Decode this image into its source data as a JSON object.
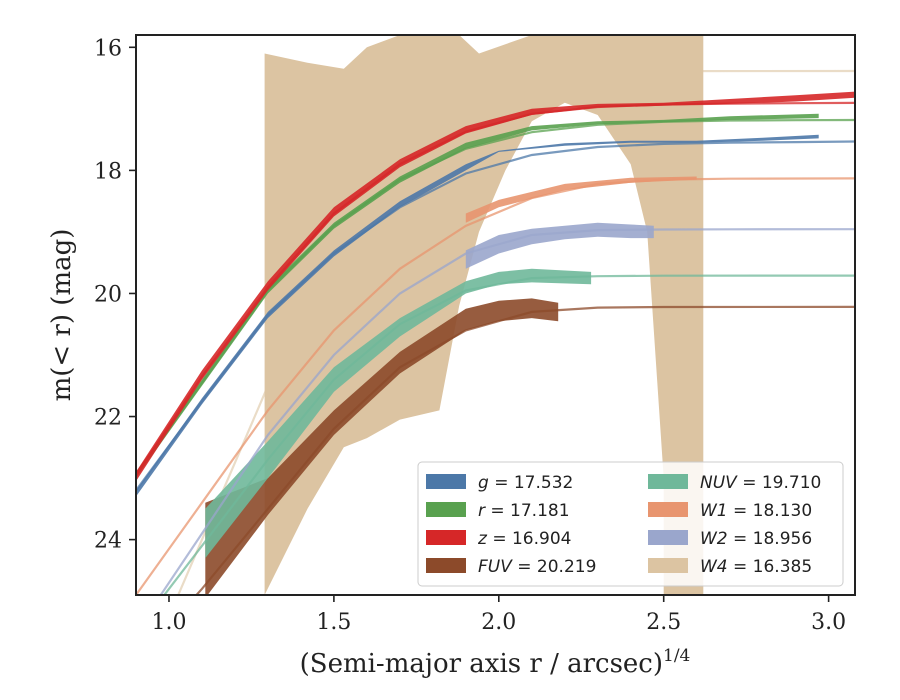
{
  "chart_data": {
    "type": "area",
    "xlabel": "(Semi-major axis r / arcsec)",
    "xlabel_sup": "1/4",
    "ylabel": "m(< r) (mag)",
    "xlim": [
      0.9,
      3.08
    ],
    "ylim": [
      24.9,
      15.8
    ],
    "y_inverted": true,
    "x_ticks": [
      1.0,
      1.5,
      2.0,
      2.5,
      3.0
    ],
    "x_tick_labels": [
      "1.0",
      "1.5",
      "2.0",
      "2.5",
      "3.0"
    ],
    "y_ticks": [
      16,
      18,
      20,
      22,
      24
    ],
    "y_tick_labels": [
      "16",
      "18",
      "20",
      "22",
      "24"
    ],
    "grid": false,
    "legend_position": "lower-right",
    "legend_columns": 2,
    "series": [
      {
        "name": "g = 17.532",
        "symbol": "g",
        "value": "17.532",
        "color": "#4c78a8",
        "band_x": [
          0.9,
          1.1,
          1.3,
          1.5,
          1.7,
          1.9,
          2.0,
          2.2,
          2.4,
          2.6,
          2.8,
          2.97
        ],
        "band_lo": [
          23.3,
          21.8,
          20.4,
          19.4,
          18.6,
          18.0,
          17.7,
          17.6,
          17.55,
          17.55,
          17.52,
          17.48
        ],
        "band_hi": [
          23.2,
          21.7,
          20.3,
          19.3,
          18.5,
          17.9,
          17.68,
          17.56,
          17.52,
          17.52,
          17.47,
          17.42
        ],
        "model_x": [
          0.9,
          1.1,
          1.3,
          1.5,
          1.7,
          1.9,
          2.1,
          2.3,
          2.5,
          2.7,
          2.9,
          3.08
        ],
        "model_y": [
          23.2,
          21.75,
          20.35,
          19.35,
          18.6,
          18.05,
          17.75,
          17.62,
          17.57,
          17.55,
          17.54,
          17.53
        ]
      },
      {
        "name": "r = 17.181",
        "symbol": "r",
        "value": "17.181",
        "color": "#59a14f",
        "band_x": [
          0.9,
          1.1,
          1.3,
          1.5,
          1.7,
          1.9,
          2.1,
          2.3,
          2.5,
          2.7,
          2.97
        ],
        "band_lo": [
          23.0,
          21.5,
          20.0,
          18.95,
          18.2,
          17.65,
          17.35,
          17.25,
          17.22,
          17.18,
          17.15
        ],
        "band_hi": [
          22.9,
          21.4,
          19.9,
          18.85,
          18.1,
          17.55,
          17.28,
          17.2,
          17.18,
          17.12,
          17.08
        ],
        "model_x": [
          0.9,
          1.1,
          1.3,
          1.5,
          1.7,
          1.9,
          2.1,
          2.3,
          2.5,
          2.7,
          2.9,
          3.08
        ],
        "model_y": [
          22.95,
          21.45,
          19.95,
          18.9,
          18.15,
          17.65,
          17.38,
          17.26,
          17.21,
          17.19,
          17.185,
          17.181
        ]
      },
      {
        "name": "z = 16.904",
        "symbol": "z",
        "value": "16.904",
        "color": "#d62728",
        "band_x": [
          0.9,
          1.1,
          1.3,
          1.5,
          1.7,
          1.9,
          2.1,
          2.3,
          2.5,
          2.7,
          2.9,
          3.08
        ],
        "band_lo": [
          23.05,
          21.4,
          19.95,
          18.75,
          17.95,
          17.4,
          17.1,
          16.98,
          16.95,
          16.92,
          16.88,
          16.82
        ],
        "band_hi": [
          22.9,
          21.25,
          19.8,
          18.6,
          17.82,
          17.28,
          17.0,
          16.92,
          16.9,
          16.84,
          16.78,
          16.72
        ],
        "model_x": [
          0.9,
          1.1,
          1.3,
          1.5,
          1.7,
          1.9,
          2.1,
          2.3,
          2.5,
          2.7,
          2.9,
          3.08
        ],
        "model_y": [
          22.95,
          21.35,
          19.9,
          18.7,
          17.9,
          17.37,
          17.08,
          16.97,
          16.93,
          16.915,
          16.908,
          16.904
        ]
      },
      {
        "name": "FUV = 20.219",
        "symbol": "FUV",
        "value": "20.219",
        "color": "#8c4a2a",
        "band_x": [
          1.11,
          1.3,
          1.5,
          1.7,
          1.9,
          2.0,
          2.1,
          2.18
        ],
        "band_lo": [
          24.95,
          23.6,
          22.3,
          21.3,
          20.6,
          20.45,
          20.4,
          20.45
        ],
        "band_hi": [
          23.4,
          23.0,
          21.9,
          20.95,
          20.25,
          20.12,
          20.08,
          20.15
        ],
        "model_x": [
          0.9,
          1.1,
          1.3,
          1.5,
          1.7,
          1.9,
          2.1,
          2.3,
          2.5,
          3.08
        ],
        "model_y": [
          26.0,
          24.8,
          23.5,
          22.2,
          21.2,
          20.6,
          20.3,
          20.23,
          20.22,
          20.219
        ]
      },
      {
        "name": "NUV = 19.710",
        "symbol": "NUV",
        "value": "19.710",
        "color": "#6fb89a",
        "band_x": [
          1.11,
          1.3,
          1.5,
          1.7,
          1.9,
          2.0,
          2.1,
          2.28
        ],
        "band_lo": [
          24.3,
          23.0,
          21.6,
          20.7,
          20.0,
          19.85,
          19.82,
          19.85
        ],
        "band_hi": [
          23.5,
          22.4,
          21.2,
          20.4,
          19.8,
          19.65,
          19.6,
          19.65
        ],
        "model_x": [
          0.9,
          1.1,
          1.3,
          1.5,
          1.7,
          1.9,
          2.1,
          2.3,
          2.5,
          3.08
        ],
        "model_y": [
          25.5,
          24.1,
          22.7,
          21.4,
          20.5,
          19.95,
          19.75,
          19.72,
          19.712,
          19.71
        ]
      },
      {
        "name": "W1 = 18.130",
        "symbol": "W1",
        "value": "18.130",
        "color": "#e8956f",
        "band_x": [
          1.9,
          2.0,
          2.2,
          2.4,
          2.6
        ],
        "band_lo": [
          18.85,
          18.6,
          18.32,
          18.2,
          18.15
        ],
        "band_hi": [
          18.7,
          18.48,
          18.22,
          18.12,
          18.1
        ],
        "model_x": [
          0.9,
          1.1,
          1.3,
          1.5,
          1.7,
          1.9,
          2.1,
          2.3,
          2.5,
          2.7,
          3.08
        ],
        "model_y": [
          24.9,
          23.4,
          21.9,
          20.6,
          19.6,
          18.9,
          18.45,
          18.22,
          18.15,
          18.135,
          18.13
        ]
      },
      {
        "name": "W2 = 18.956",
        "symbol": "W2",
        "value": "18.956",
        "color": "#9aa6cc",
        "band_x": [
          1.9,
          2.0,
          2.1,
          2.2,
          2.3,
          2.4,
          2.47
        ],
        "band_lo": [
          19.6,
          19.35,
          19.2,
          19.12,
          19.08,
          19.1,
          19.1
        ],
        "band_hi": [
          19.3,
          19.05,
          18.95,
          18.9,
          18.85,
          18.88,
          18.9
        ],
        "model_x": [
          0.9,
          1.1,
          1.3,
          1.5,
          1.7,
          1.9,
          2.1,
          2.3,
          2.5,
          2.7,
          3.08
        ],
        "model_y": [
          25.5,
          23.9,
          22.3,
          21.0,
          20.0,
          19.35,
          19.05,
          18.97,
          18.96,
          18.957,
          18.956
        ]
      },
      {
        "name": "W4 = 16.385",
        "symbol": "W4",
        "value": "16.385",
        "color": "#dcc4a2",
        "band_x": [
          1.29,
          1.29,
          1.42,
          1.53,
          1.6,
          1.7,
          1.82,
          1.88,
          1.94,
          2.02,
          2.1,
          2.2,
          2.3,
          2.4,
          2.45,
          2.5,
          2.5,
          2.62
        ],
        "band_lo": [
          24.9,
          24.9,
          23.5,
          22.5,
          22.35,
          22.05,
          21.9,
          20.2,
          19.0,
          18.0,
          17.2,
          16.9,
          17.1,
          17.9,
          19.0,
          23.0,
          24.9,
          24.9
        ],
        "band_hi": [
          24.9,
          16.1,
          16.25,
          16.35,
          16.0,
          15.8,
          15.8,
          15.8,
          16.1,
          15.95,
          15.8,
          15.8,
          15.8,
          15.8,
          15.8,
          15.8,
          15.8,
          15.8
        ],
        "model_x": [
          0.9,
          1.1,
          1.3,
          1.5,
          1.7,
          1.9,
          2.1,
          2.3,
          2.5,
          3.08
        ],
        "model_y": [
          26.5,
          24.0,
          21.5,
          19.4,
          17.9,
          16.9,
          16.42,
          16.39,
          16.386,
          16.385
        ]
      }
    ]
  }
}
